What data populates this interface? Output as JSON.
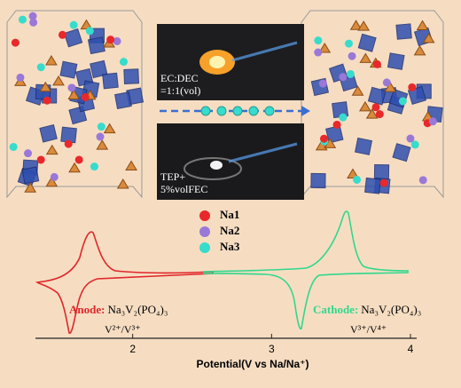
{
  "photos": [
    {
      "lines": [
        "EC:DEC",
        "=1:1(vol)"
      ]
    },
    {
      "lines": [
        "TEP+",
        "5%volFEC"
      ]
    }
  ],
  "legend": [
    {
      "name": "Na1",
      "color": "#e8282a"
    },
    {
      "name": "Na2",
      "color": "#9a78d8"
    },
    {
      "name": "Na3",
      "color": "#36dccc"
    }
  ],
  "anode": {
    "label": "Anode:",
    "formula": "Na₃V₂(PO₄)₃",
    "couple": "V²⁺/V³⁺",
    "color": "#e0262a"
  },
  "cathode": {
    "label": "Cathode:",
    "formula": "Na₃V₂(PO₄)₃",
    "couple": "V³⁺/V⁴⁺",
    "color": "#2fd88c"
  },
  "chart_data": {
    "type": "line",
    "xlabel": "Potential(V vs Na/Na⁺)",
    "xlim": [
      1.3,
      4
    ],
    "xticks": [
      2,
      3,
      4
    ]
  }
}
